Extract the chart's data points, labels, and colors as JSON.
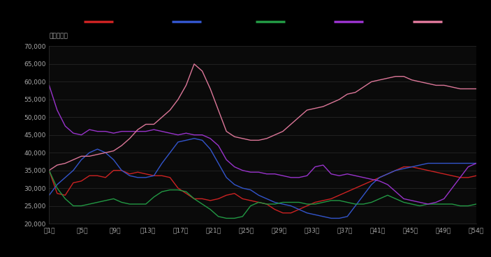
{
  "background_color": "#000000",
  "plot_bg_color": "#0a0a0a",
  "text_color": "#aaaaaa",
  "ylabel_text": "单位：千辆",
  "ylim": [
    20000,
    70000
  ],
  "yticks": [
    20000,
    25000,
    30000,
    35000,
    40000,
    45000,
    50000,
    55000,
    60000,
    65000,
    70000
  ],
  "xtick_labels": [
    "第1周",
    "第5周",
    "第9周",
    "第13周",
    "第17周",
    "第21周",
    "第25周",
    "第29周",
    "第33周",
    "第37周",
    "第41周",
    "第45周",
    "第49周",
    "第54周"
  ],
  "lines": [
    {
      "color": "#cc2222",
      "data": [
        35000,
        28500,
        28000,
        31500,
        32000,
        33500,
        33500,
        33000,
        35000,
        35000,
        34000,
        34500,
        34000,
        33500,
        33500,
        33000,
        30000,
        28500,
        27000,
        27000,
        26500,
        27000,
        28000,
        28500,
        27000,
        26500,
        26000,
        25500,
        24000,
        23000,
        23000,
        24000,
        25000,
        26000,
        26500,
        27000,
        28000,
        29000,
        30000,
        31000,
        32000,
        33000,
        34000,
        35000,
        36000,
        36000,
        35500,
        35000,
        34500,
        34000,
        33500,
        33000,
        33000,
        33500
      ]
    },
    {
      "color": "#3355cc",
      "data": [
        28000,
        31000,
        33000,
        35000,
        38000,
        40000,
        41000,
        40000,
        38000,
        35000,
        33500,
        33000,
        33000,
        33500,
        37000,
        40000,
        43000,
        43500,
        44000,
        43500,
        41000,
        37000,
        33000,
        31000,
        30000,
        29500,
        28000,
        27000,
        26000,
        25500,
        25000,
        24000,
        23000,
        22500,
        22000,
        21500,
        21500,
        22000,
        25000,
        28000,
        31000,
        33000,
        34000,
        35000,
        35500,
        36000,
        36500,
        37000,
        37000,
        37000,
        37000,
        37000,
        37000,
        37000
      ]
    },
    {
      "color": "#229944",
      "data": [
        35000,
        30000,
        27000,
        25000,
        25000,
        25500,
        26000,
        26500,
        27000,
        26000,
        25500,
        25500,
        25500,
        27500,
        29000,
        29500,
        29500,
        29000,
        27000,
        25500,
        24000,
        22000,
        21500,
        21500,
        22000,
        25000,
        26000,
        25500,
        25500,
        26000,
        26000,
        26000,
        25500,
        25500,
        26000,
        26500,
        26500,
        26000,
        25500,
        25500,
        26000,
        27000,
        28000,
        27000,
        26000,
        25500,
        25000,
        25500,
        25500,
        25500,
        25500,
        25000,
        25000,
        25500
      ]
    },
    {
      "color": "#9933cc",
      "data": [
        59000,
        52000,
        47500,
        45500,
        45000,
        46500,
        46000,
        46000,
        45500,
        46000,
        46000,
        46000,
        46000,
        46500,
        46000,
        45500,
        45000,
        45500,
        45000,
        45000,
        44000,
        42000,
        38000,
        36000,
        35000,
        34500,
        34500,
        34000,
        34000,
        33500,
        33000,
        33000,
        33500,
        36000,
        36500,
        34000,
        33500,
        34000,
        33500,
        33000,
        32500,
        32000,
        31000,
        29000,
        27000,
        26500,
        26000,
        25500,
        26000,
        27000,
        30000,
        33000,
        36000,
        37000
      ]
    },
    {
      "color": "#dd7799",
      "data": [
        35000,
        36500,
        37000,
        38000,
        39000,
        39000,
        39500,
        40000,
        40500,
        42000,
        44000,
        46500,
        48000,
        48000,
        50000,
        52000,
        55000,
        59000,
        65000,
        63000,
        58000,
        52000,
        46000,
        44500,
        44000,
        43500,
        43500,
        44000,
        45000,
        46000,
        48000,
        50000,
        52000,
        52500,
        53000,
        54000,
        55000,
        56500,
        57000,
        58500,
        60000,
        60500,
        61000,
        61500,
        61500,
        60500,
        60000,
        59500,
        59000,
        59000,
        58500,
        58000,
        58000,
        58000
      ]
    }
  ],
  "legend_colors": [
    "#cc2222",
    "#3355cc",
    "#229944",
    "#9933cc",
    "#dd7799"
  ]
}
